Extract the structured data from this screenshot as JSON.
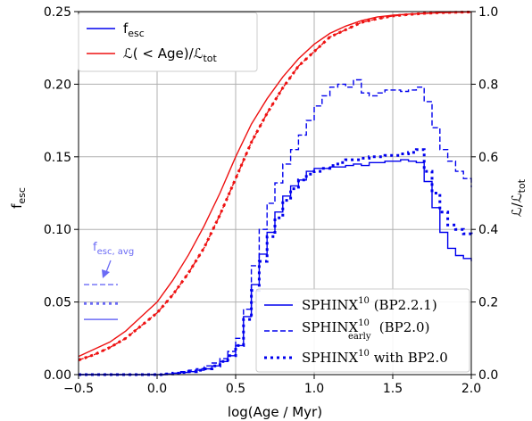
{
  "chart_data": {
    "type": "line",
    "xlabel": "log(Age / Myr)",
    "ylabel_left": "f_esc",
    "ylabel_right": "ℒ/ℒ_tot",
    "xlim": [
      -0.5,
      2.0
    ],
    "ylim_left": [
      0,
      0.25
    ],
    "ylim_right": [
      0,
      1.0
    ],
    "grid": true,
    "x_ticks": [
      -0.5,
      0.0,
      0.5,
      1.0,
      1.5,
      2.0
    ],
    "x_tick_labels": [
      "−0.5",
      "0.0",
      "0.5",
      "1.0",
      "1.5",
      "2.0"
    ],
    "y_left_ticks": [
      0,
      0.05,
      0.1,
      0.15,
      0.2,
      0.25
    ],
    "y_left_tick_labels": [
      "0.00",
      "0.05",
      "0.10",
      "0.15",
      "0.20",
      "0.25"
    ],
    "y_right_ticks": [
      0,
      0.2,
      0.4,
      0.6,
      0.8,
      1.0
    ],
    "y_right_tick_labels": [
      "0.0",
      "0.2",
      "0.4",
      "0.6",
      "0.8",
      "1.0"
    ],
    "legend_top_left": [
      {
        "label_main": "f",
        "label_sub": "esc",
        "color": "#0000ee",
        "style": "solid"
      },
      {
        "label_main": "ℒ( < Age)/ℒ",
        "label_sub": "tot",
        "color": "#ee1111",
        "style": "solid"
      }
    ],
    "legend_bottom_right": [
      {
        "label": "SPHINX",
        "sup": "10",
        "sub": "",
        "suffix": " (BP2.2.1)",
        "style": "solid"
      },
      {
        "label": "SPHINX",
        "sup": "10",
        "sub": "early",
        "suffix": " (BP2.0)",
        "style": "dashed"
      },
      {
        "label": "SPHINX",
        "sup": "10",
        "sub": "",
        "suffix": " with BP2.0",
        "style": "dotted"
      }
    ],
    "annotation": {
      "text_main": "f",
      "text_sub": "esc, avg",
      "color": "#6b6bf5"
    },
    "avg_lines": [
      {
        "style": "dashed",
        "value": 0.062,
        "x0": -0.5,
        "x1": -0.25
      },
      {
        "style": "dotted",
        "value": 0.049,
        "x0": -0.5,
        "x1": -0.25
      },
      {
        "style": "solid",
        "value": 0.038,
        "x0": -0.5,
        "x1": -0.25
      }
    ],
    "series": [
      {
        "axis": "left",
        "style": "solid",
        "color": "#0000ee",
        "step": true,
        "x": [
          -0.5,
          -0.4,
          -0.3,
          -0.2,
          -0.1,
          0.0,
          0.05,
          0.1,
          0.15,
          0.2,
          0.25,
          0.3,
          0.35,
          0.4,
          0.45,
          0.5,
          0.55,
          0.6,
          0.65,
          0.7,
          0.75,
          0.8,
          0.85,
          0.9,
          0.95,
          1.0,
          1.05,
          1.1,
          1.15,
          1.2,
          1.25,
          1.3,
          1.35,
          1.4,
          1.45,
          1.5,
          1.55,
          1.6,
          1.65,
          1.7,
          1.75,
          1.8,
          1.85,
          1.9,
          1.95,
          2.0
        ],
        "y": [
          0.0,
          0.0,
          0.0,
          0.0,
          0.0,
          0.0,
          0.0005,
          0.001,
          0.0015,
          0.002,
          0.003,
          0.004,
          0.006,
          0.009,
          0.013,
          0.02,
          0.04,
          0.062,
          0.083,
          0.098,
          0.112,
          0.123,
          0.13,
          0.134,
          0.14,
          0.142,
          0.142,
          0.143,
          0.143,
          0.144,
          0.145,
          0.144,
          0.146,
          0.146,
          0.147,
          0.147,
          0.148,
          0.147,
          0.146,
          0.133,
          0.115,
          0.098,
          0.087,
          0.082,
          0.08,
          0.078
        ]
      },
      {
        "axis": "left",
        "style": "dashed",
        "color": "#0000ee",
        "step": true,
        "x": [
          -0.5,
          -0.4,
          -0.3,
          -0.2,
          -0.1,
          0.0,
          0.05,
          0.1,
          0.15,
          0.2,
          0.25,
          0.3,
          0.35,
          0.4,
          0.45,
          0.5,
          0.55,
          0.6,
          0.65,
          0.7,
          0.75,
          0.8,
          0.85,
          0.9,
          0.95,
          1.0,
          1.05,
          1.1,
          1.15,
          1.2,
          1.25,
          1.3,
          1.35,
          1.4,
          1.45,
          1.5,
          1.55,
          1.6,
          1.65,
          1.7,
          1.75,
          1.8,
          1.85,
          1.9,
          1.95,
          2.0
        ],
        "y": [
          0.0,
          0.0,
          0.0,
          0.0,
          0.0,
          0.0,
          0.0005,
          0.001,
          0.002,
          0.003,
          0.004,
          0.006,
          0.008,
          0.011,
          0.016,
          0.025,
          0.045,
          0.075,
          0.1,
          0.118,
          0.132,
          0.145,
          0.155,
          0.165,
          0.175,
          0.185,
          0.192,
          0.198,
          0.2,
          0.198,
          0.203,
          0.194,
          0.192,
          0.194,
          0.196,
          0.196,
          0.195,
          0.196,
          0.198,
          0.188,
          0.17,
          0.155,
          0.147,
          0.14,
          0.135,
          0.129
        ]
      },
      {
        "axis": "left",
        "style": "dotted",
        "color": "#0000ee",
        "step": true,
        "x": [
          -0.5,
          -0.4,
          -0.3,
          -0.2,
          -0.1,
          0.0,
          0.05,
          0.1,
          0.15,
          0.2,
          0.25,
          0.3,
          0.35,
          0.4,
          0.45,
          0.5,
          0.55,
          0.6,
          0.65,
          0.7,
          0.75,
          0.8,
          0.85,
          0.9,
          0.95,
          1.0,
          1.05,
          1.1,
          1.15,
          1.2,
          1.25,
          1.3,
          1.35,
          1.4,
          1.45,
          1.5,
          1.55,
          1.6,
          1.65,
          1.7,
          1.75,
          1.8,
          1.85,
          1.9,
          1.95,
          2.0
        ],
        "y": [
          0.0,
          0.0,
          0.0,
          0.0,
          0.0,
          0.0,
          0.0005,
          0.001,
          0.0015,
          0.002,
          0.003,
          0.004,
          0.006,
          0.009,
          0.013,
          0.02,
          0.038,
          0.058,
          0.078,
          0.095,
          0.108,
          0.12,
          0.128,
          0.134,
          0.138,
          0.14,
          0.142,
          0.144,
          0.146,
          0.148,
          0.148,
          0.149,
          0.15,
          0.15,
          0.151,
          0.151,
          0.152,
          0.153,
          0.155,
          0.14,
          0.125,
          0.112,
          0.103,
          0.1,
          0.097,
          0.095
        ]
      },
      {
        "axis": "right",
        "style": "solid",
        "color": "#ee1111",
        "step": false,
        "x": [
          -0.5,
          -0.4,
          -0.3,
          -0.2,
          -0.1,
          0.0,
          0.1,
          0.2,
          0.3,
          0.4,
          0.5,
          0.6,
          0.7,
          0.8,
          0.9,
          1.0,
          1.1,
          1.2,
          1.3,
          1.4,
          1.5,
          1.6,
          1.7,
          1.8,
          1.9,
          2.0
        ],
        "y": [
          0.05,
          0.07,
          0.09,
          0.12,
          0.16,
          0.2,
          0.26,
          0.33,
          0.41,
          0.5,
          0.6,
          0.69,
          0.76,
          0.82,
          0.87,
          0.91,
          0.94,
          0.96,
          0.975,
          0.985,
          0.99,
          0.993,
          0.995,
          0.997,
          0.998,
          0.999
        ]
      },
      {
        "axis": "right",
        "style": "dashed",
        "color": "#ee1111",
        "step": false,
        "x": [
          -0.5,
          -0.4,
          -0.3,
          -0.2,
          -0.1,
          0.0,
          0.1,
          0.2,
          0.3,
          0.4,
          0.5,
          0.6,
          0.7,
          0.8,
          0.9,
          1.0,
          1.1,
          1.2,
          1.3,
          1.4,
          1.5,
          1.6,
          1.7,
          1.8,
          1.9,
          2.0
        ],
        "y": [
          0.04,
          0.055,
          0.075,
          0.1,
          0.135,
          0.17,
          0.22,
          0.28,
          0.35,
          0.44,
          0.54,
          0.64,
          0.72,
          0.79,
          0.85,
          0.89,
          0.93,
          0.95,
          0.97,
          0.98,
          0.988,
          0.992,
          0.995,
          0.997,
          0.998,
          0.999
        ]
      },
      {
        "axis": "right",
        "style": "dotted",
        "color": "#ee1111",
        "step": false,
        "x": [
          -0.5,
          -0.4,
          -0.3,
          -0.2,
          -0.1,
          0.0,
          0.1,
          0.2,
          0.3,
          0.4,
          0.5,
          0.6,
          0.7,
          0.8,
          0.9,
          1.0,
          1.1,
          1.2,
          1.3,
          1.4,
          1.5,
          1.6,
          1.7,
          1.8,
          1.9,
          2.0
        ],
        "y": [
          0.04,
          0.055,
          0.075,
          0.1,
          0.135,
          0.17,
          0.22,
          0.28,
          0.35,
          0.44,
          0.54,
          0.64,
          0.72,
          0.79,
          0.85,
          0.89,
          0.93,
          0.95,
          0.97,
          0.98,
          0.988,
          0.992,
          0.995,
          0.997,
          0.998,
          0.999
        ]
      }
    ]
  }
}
